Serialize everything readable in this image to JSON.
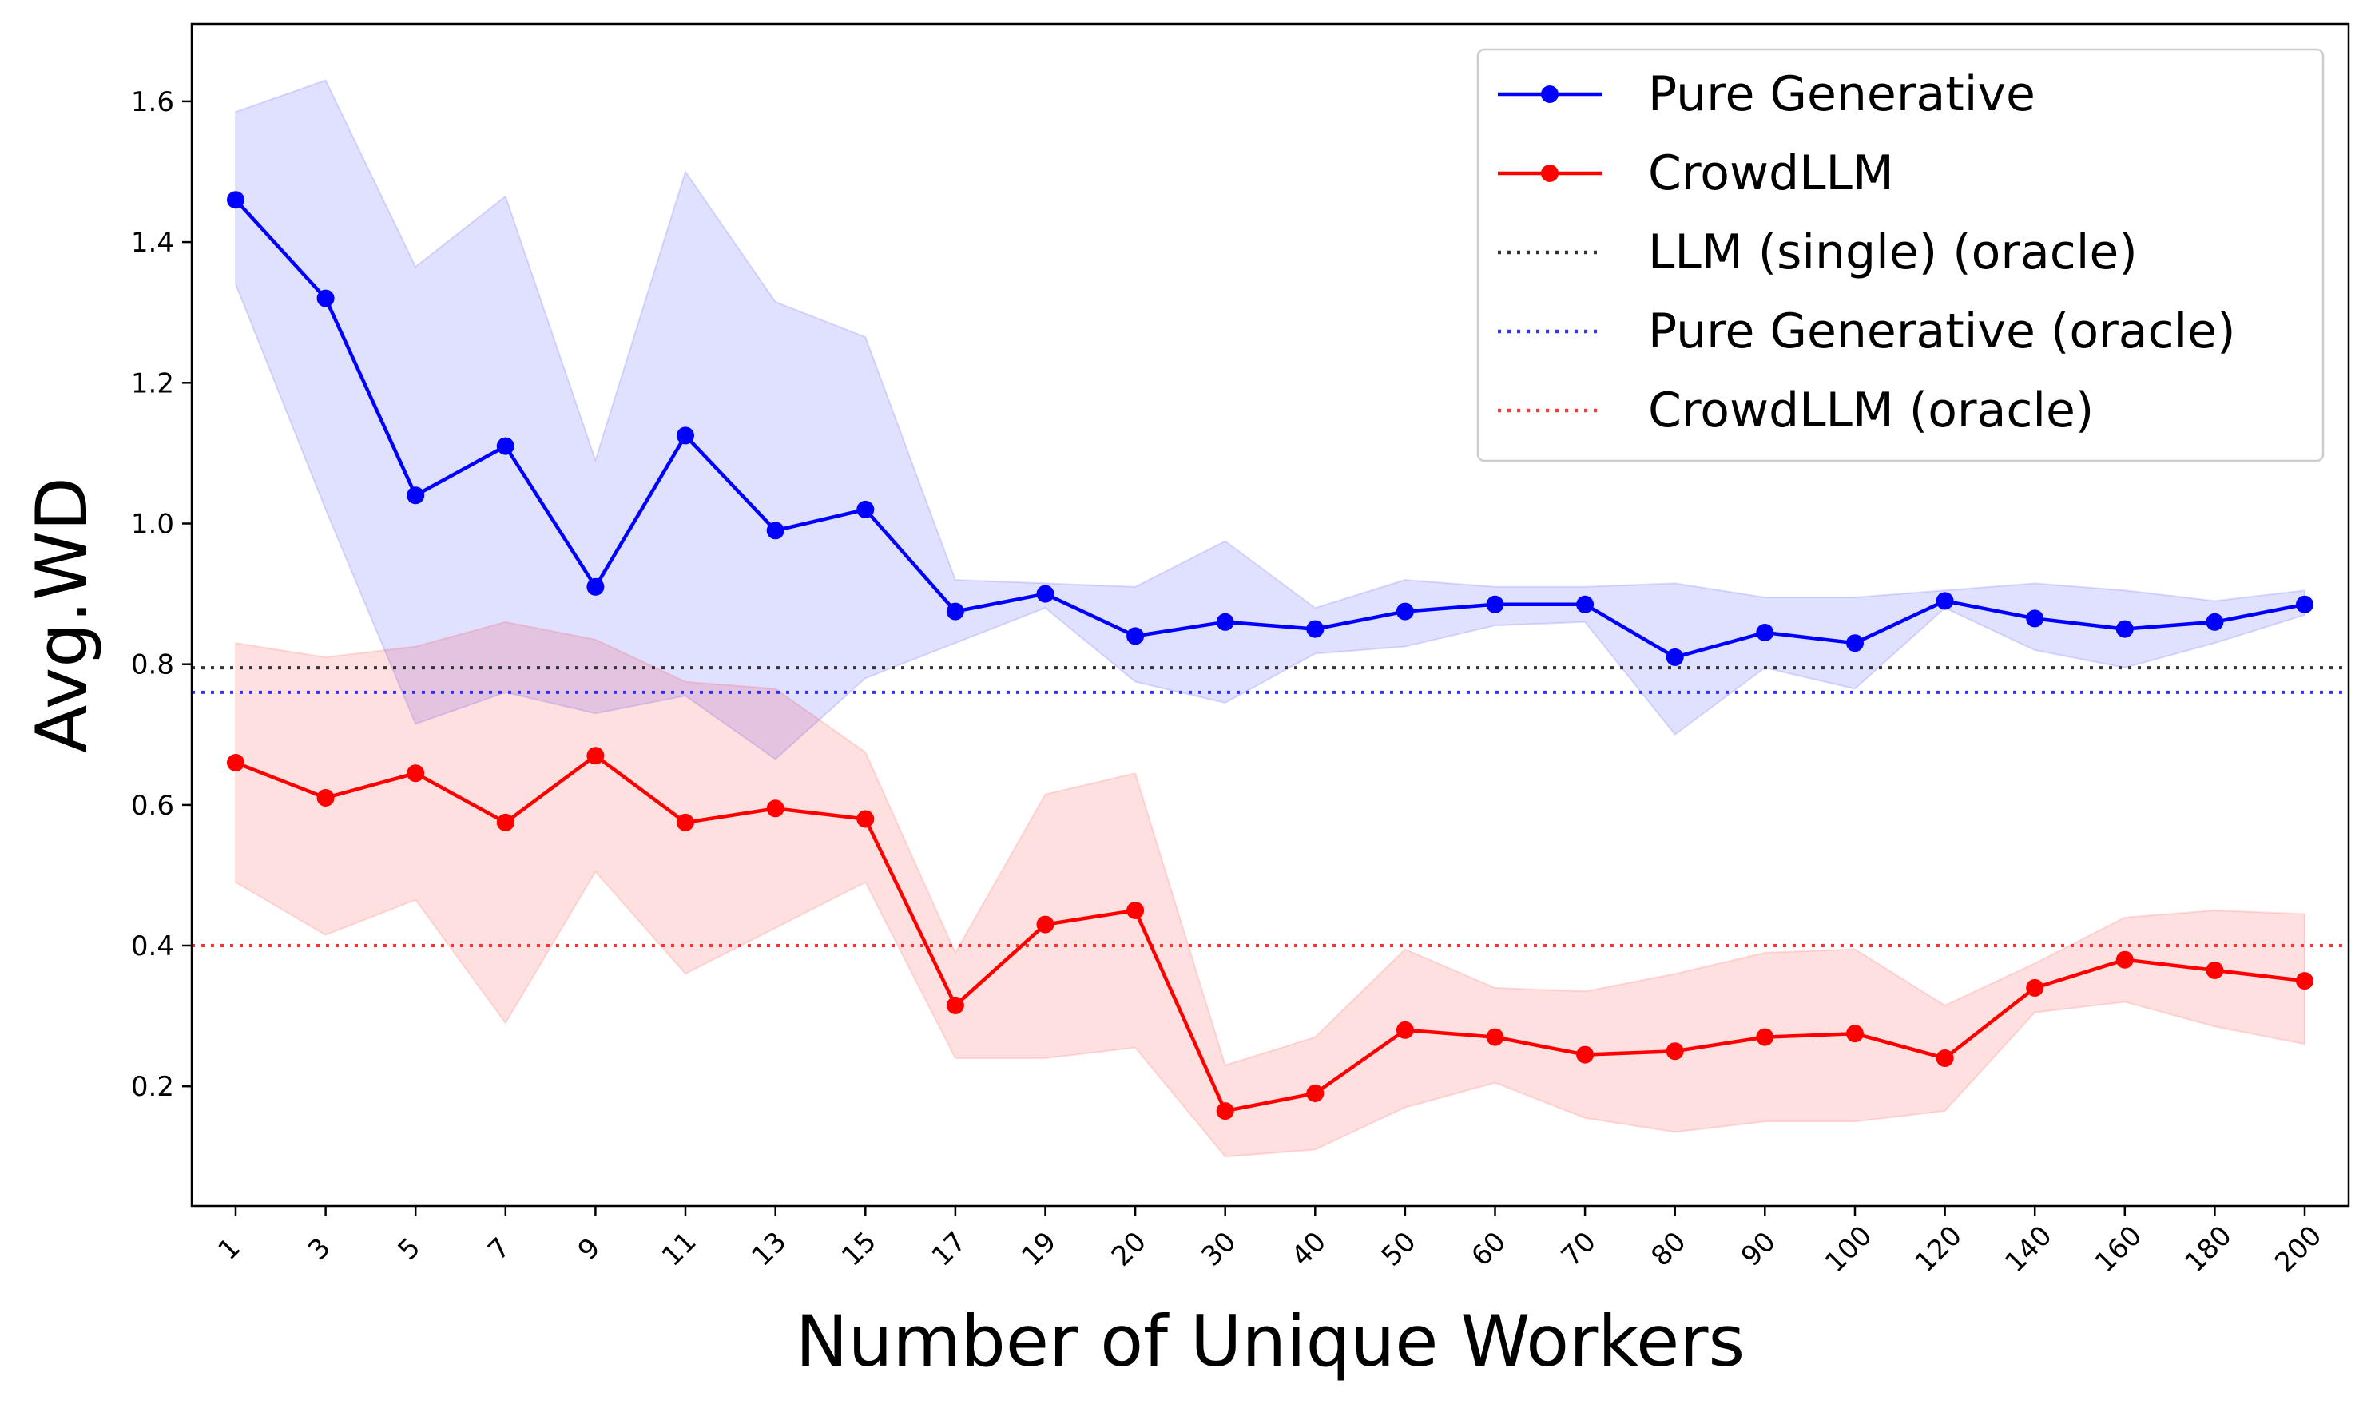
{
  "chart_data": {
    "type": "line",
    "title": "",
    "xlabel": "Number of Unique Workers",
    "ylabel": "Avg.WD",
    "categories": [
      "1",
      "3",
      "5",
      "7",
      "9",
      "11",
      "13",
      "15",
      "17",
      "19",
      "20",
      "30",
      "40",
      "50",
      "60",
      "70",
      "80",
      "90",
      "100",
      "120",
      "140",
      "160",
      "180",
      "200"
    ],
    "ylim": [
      0.03,
      1.71
    ],
    "yticks": [
      0.2,
      0.4,
      0.6,
      0.8,
      1.0,
      1.2,
      1.4,
      1.6
    ],
    "ytick_labels": [
      "0.2",
      "0.4",
      "0.6",
      "0.8",
      "1.0",
      "1.2",
      "1.4",
      "1.6"
    ],
    "legend_position": "top-right",
    "series": [
      {
        "name": "Pure Generative",
        "color": "#0000ff",
        "values": [
          1.46,
          1.32,
          1.04,
          1.11,
          0.91,
          1.125,
          0.99,
          1.02,
          0.875,
          0.9,
          0.84,
          0.86,
          0.85,
          0.875,
          0.885,
          0.885,
          0.81,
          0.845,
          0.83,
          0.89,
          0.865,
          0.85,
          0.86,
          0.885
        ],
        "upper": [
          1.585,
          1.63,
          1.365,
          1.465,
          1.09,
          1.5,
          1.315,
          1.265,
          0.92,
          0.915,
          0.91,
          0.975,
          0.88,
          0.92,
          0.91,
          0.91,
          0.915,
          0.895,
          0.895,
          0.905,
          0.915,
          0.905,
          0.89,
          0.905
        ],
        "lower": [
          1.34,
          1.02,
          0.715,
          0.76,
          0.73,
          0.755,
          0.665,
          0.78,
          0.83,
          0.88,
          0.775,
          0.745,
          0.815,
          0.825,
          0.855,
          0.86,
          0.7,
          0.795,
          0.765,
          0.88,
          0.82,
          0.795,
          0.83,
          0.87
        ],
        "band_color": "#0000ff",
        "band_opacity": 0.12
      },
      {
        "name": "CrowdLLM",
        "color": "#ff0000",
        "values": [
          0.66,
          0.61,
          0.645,
          0.575,
          0.67,
          0.575,
          0.595,
          0.58,
          0.315,
          0.43,
          0.45,
          0.165,
          0.19,
          0.28,
          0.27,
          0.245,
          0.25,
          0.27,
          0.275,
          0.24,
          0.34,
          0.38,
          0.365,
          0.35
        ],
        "upper": [
          0.83,
          0.81,
          0.825,
          0.86,
          0.835,
          0.775,
          0.765,
          0.675,
          0.39,
          0.615,
          0.645,
          0.23,
          0.27,
          0.395,
          0.34,
          0.335,
          0.36,
          0.39,
          0.395,
          0.315,
          0.375,
          0.44,
          0.45,
          0.445
        ],
        "lower": [
          0.49,
          0.415,
          0.465,
          0.29,
          0.505,
          0.36,
          0.425,
          0.49,
          0.24,
          0.24,
          0.255,
          0.1,
          0.11,
          0.17,
          0.205,
          0.155,
          0.135,
          0.15,
          0.15,
          0.165,
          0.305,
          0.32,
          0.285,
          0.26
        ],
        "band_color": "#ff0000",
        "band_opacity": 0.12
      }
    ],
    "reference_lines": [
      {
        "name": "LLM (single) (oracle)",
        "value": 0.795,
        "color": "#333333",
        "style": "dotted"
      },
      {
        "name": "Pure Generative (oracle)",
        "value": 0.76,
        "color": "#3333ff",
        "style": "dotted"
      },
      {
        "name": "CrowdLLM (oracle)",
        "value": 0.4,
        "color": "#ff3333",
        "style": "dotted"
      }
    ]
  }
}
